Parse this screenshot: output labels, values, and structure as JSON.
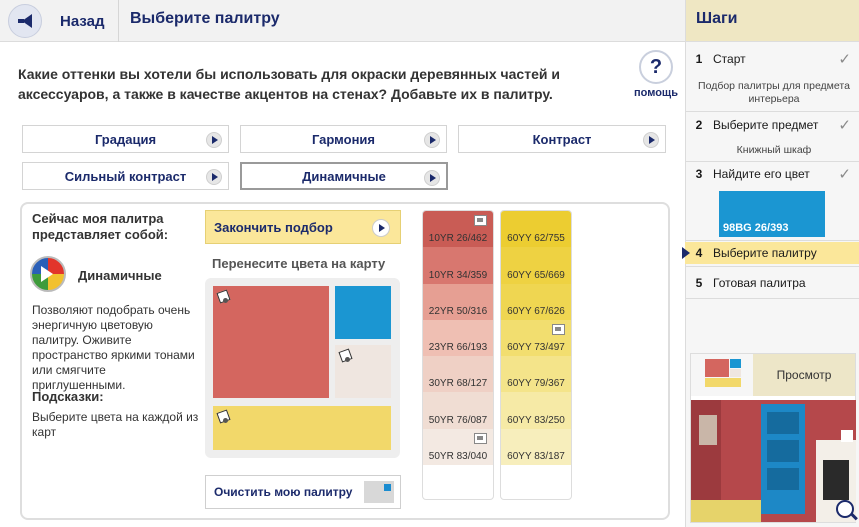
{
  "header": {
    "back_label": "Назад",
    "title": "Выберите палитру"
  },
  "question": "Какие оттенки вы хотели бы использовать для окраски деревянных частей и аксессуаров, а также в качестве акцентов на стенах? Добавьте их в палитру.",
  "help": {
    "icon": "?",
    "label": "помощь"
  },
  "tabs": [
    {
      "label": "Градация"
    },
    {
      "label": "Гармония"
    },
    {
      "label": "Контраст"
    },
    {
      "label": "Сильный контраст"
    },
    {
      "label": "Динамичные",
      "active": true
    }
  ],
  "palette": {
    "current_label": "Сейчас моя палитра представляет собой:",
    "name": "Динамичные",
    "description": "Позволяют подобрать очень энергичную цветовую палитру. Оживите пространство яркими тонами или смягчите приглушенными.",
    "hints_title": "Подсказки:",
    "hints_text": "Выберите цвета на каждой из карт"
  },
  "finish_button": "Закончить подбор",
  "transfer_label": "Перенесите цвета на карту",
  "clear_button": "Очистить мою палитру",
  "map_colors": {
    "big": "#d4665f",
    "top_right": "#1b96d2",
    "mid_right": "#efe6e0",
    "bottom": "#f2d86a"
  },
  "strips": [
    {
      "colors": [
        {
          "code": "10YR 26/462",
          "color": "#c95c55",
          "icon": true
        },
        {
          "code": "10YR 34/359",
          "color": "#d8776f"
        },
        {
          "code": "22YR 50/316",
          "color": "#e69f93"
        },
        {
          "code": "23YR 66/193",
          "color": "#efbfb3"
        },
        {
          "code": "30YR 68/127",
          "color": "#efd0c5"
        },
        {
          "code": "50YR 76/087",
          "color": "#f0ddd3"
        },
        {
          "code": "50YR 83/040",
          "color": "#f3e9e2",
          "icon": true
        }
      ]
    },
    {
      "colors": [
        {
          "code": "60YY 62/755",
          "color": "#eccd31"
        },
        {
          "code": "60YY 65/669",
          "color": "#eed242"
        },
        {
          "code": "60YY 67/626",
          "color": "#efd651"
        },
        {
          "code": "60YY 73/497",
          "color": "#f2de6f",
          "icon": true
        },
        {
          "code": "60YY 79/367",
          "color": "#f4e48a"
        },
        {
          "code": "60YY 83/250",
          "color": "#f6eaa6"
        },
        {
          "code": "60YY 83/187",
          "color": "#f7eebc"
        }
      ]
    }
  ],
  "sidebar": {
    "title": "Шаги",
    "steps": [
      {
        "num": "1",
        "label": "Старт",
        "done": true,
        "sub": "Подбор палитры для предмета интерьера"
      },
      {
        "num": "2",
        "label": "Выберите предмет",
        "done": true,
        "sub": "Книжный шкаф"
      },
      {
        "num": "3",
        "label": "Найдите его цвет",
        "done": true,
        "chip": "98BG 26/393"
      },
      {
        "num": "4",
        "label": "Выберите палитру",
        "active": true
      },
      {
        "num": "5",
        "label": "Готовая палитра"
      }
    ],
    "preview_label": "Просмотр"
  }
}
